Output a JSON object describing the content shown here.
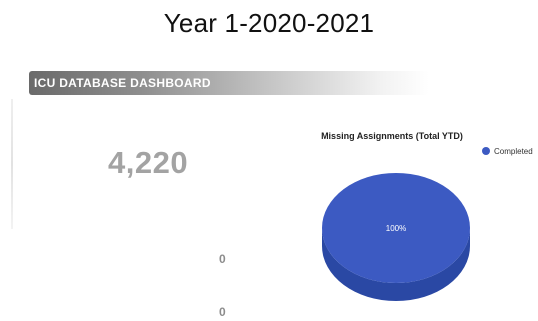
{
  "page_title": "Year 1-2020-2021",
  "dashboard": {
    "banner_title": "ICU DATABASE DASHBOARD",
    "total_value": "4,220",
    "secondary_values": [
      "0",
      "0"
    ]
  },
  "colors": {
    "pie_slice": "#3c5ac2",
    "pie_side": "#2a48a4",
    "slice_label": "#ffffff"
  },
  "chart_data": {
    "type": "pie",
    "title": "Missing Assignments (Total YTD)",
    "slices": [
      {
        "name": "Completed",
        "value": 100,
        "label": "100%"
      }
    ],
    "legend_position": "right"
  }
}
